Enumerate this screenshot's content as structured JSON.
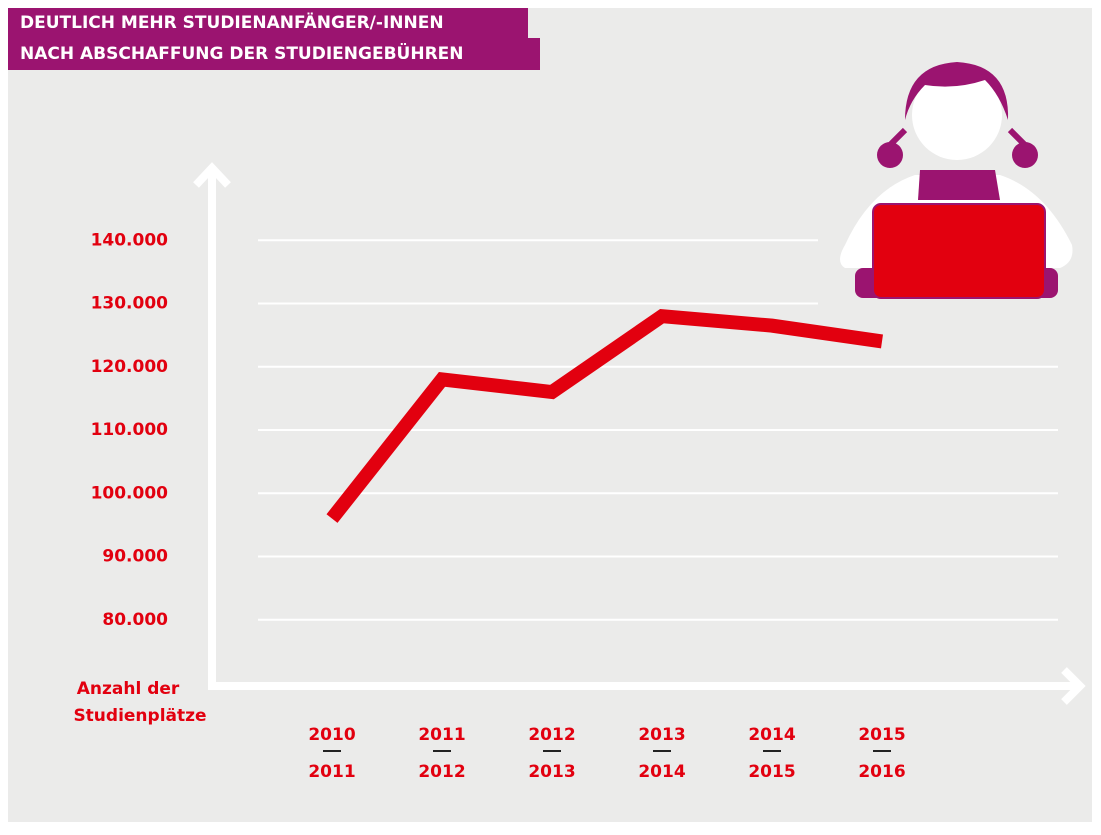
{
  "chart_data": {
    "type": "line",
    "title": [
      "DEUTLICH MEHR STUDIENANFÄNGER/-INNEN",
      "NACH ABSCHAFFUNG DER STUDIENGEBÜHREN"
    ],
    "y_label": [
      "Anzahl der",
      "Studienplätze"
    ],
    "categories": [
      [
        "2010",
        "2011"
      ],
      [
        "2011",
        "2012"
      ],
      [
        "2012",
        "2013"
      ],
      [
        "2013",
        "2014"
      ],
      [
        "2014",
        "2015"
      ],
      [
        "2015",
        "2016"
      ]
    ],
    "values": [
      96000,
      118000,
      116000,
      128000,
      126500,
      124000
    ],
    "color": "#e2000f",
    "ylim": [
      70000,
      150000
    ],
    "yticks": [
      {
        "value": 80000,
        "label": "80.000"
      },
      {
        "value": 90000,
        "label": "90.000"
      },
      {
        "value": 100000,
        "label": "100.000"
      },
      {
        "value": 110000,
        "label": "110.000"
      },
      {
        "value": 120000,
        "label": "120.000"
      },
      {
        "value": 130000,
        "label": "130.000"
      },
      {
        "value": 140000,
        "label": "140.000"
      }
    ],
    "grid": true
  }
}
